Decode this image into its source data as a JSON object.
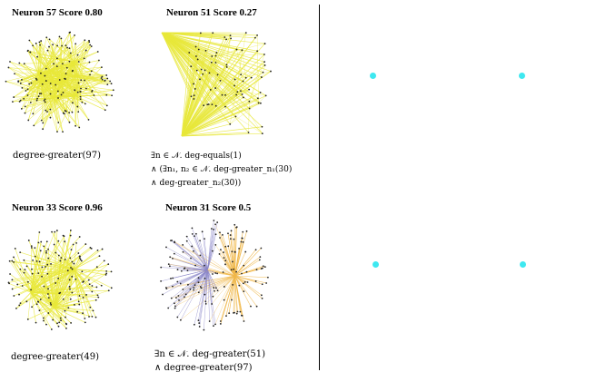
{
  "panels": [
    {
      "title": "Neuron 57  Score 0.80",
      "formula_lines": [
        "degree-greater(97)"
      ],
      "graph": {
        "nodes": 160,
        "style": "hub",
        "edge_color": "#e8e83a",
        "edge_color2": ""
      }
    },
    {
      "title": "Neuron 51  Score 0.27",
      "formula_lines": [
        "∃n ∈ 𝒩. deg-equals(1)",
        "∧ (∃n₁, n₂ ∈ 𝒩. deg-greater_n₁(30)",
        "∧ deg-greater_n₂(30))"
      ],
      "graph": {
        "nodes": 80,
        "style": "fan",
        "edge_color": "#e8e83a",
        "edge_color2": ""
      }
    },
    {
      "title": "Neuron 33 Score 0.96",
      "formula_lines": [
        "degree-greater(49)"
      ],
      "graph": {
        "nodes": 170,
        "style": "multi",
        "edge_color": "#e8e83a",
        "edge_color2": ""
      }
    },
    {
      "title": "Neuron 31 Score 0.5",
      "formula_lines": [
        "∃n ∈ 𝒩. deg-greater(51)",
        "∧ degree-greater(97)"
      ],
      "graph": {
        "nodes": 170,
        "style": "dual",
        "edge_color": "#8a86c8",
        "edge_color2": "#f0b84a"
      }
    }
  ],
  "right_panel": {
    "dot_color": "#3ee8f0",
    "dot_count": 4
  }
}
